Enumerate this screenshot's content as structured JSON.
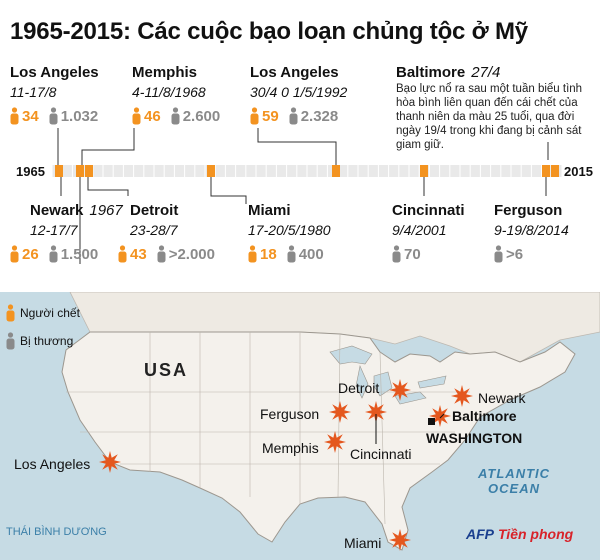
{
  "title": "1965-2015: Các cuộc bạo loạn chủng tộc ở Mỹ",
  "colors": {
    "dead": "#f39320",
    "injured": "#8a8a8a",
    "star": "#e4571e",
    "sea": "#c6dbe4",
    "land": "#f4f1ec"
  },
  "timeline": {
    "start": "1965",
    "end": "2015"
  },
  "events_top": [
    {
      "city": "Los Angeles",
      "year": "",
      "date": "11-17/8",
      "dead": "34",
      "injured": "1.032"
    },
    {
      "city": "Memphis",
      "year": "",
      "date": "4-11/8/1968",
      "dead": "46",
      "injured": "2.600"
    },
    {
      "city": "Los Angeles",
      "year": "",
      "date": "30/4 0 1/5/1992",
      "dead": "59",
      "injured": "2.328"
    },
    {
      "city": "Baltimore",
      "year": "27/4",
      "date": "",
      "dead": "",
      "injured": ""
    }
  ],
  "baltimore_desc": "Bạo lực nổ ra sau một tuần biểu tình hòa bình liên quan đến cái chết của thanh niên da màu 25 tuổi, qua đời ngày 19/4 trong khi đang bị cảnh sát giam giữ.",
  "events_bottom": [
    {
      "city": "Newark",
      "year": "1967",
      "date": "12-17/7",
      "dead": "26",
      "injured": "1.500"
    },
    {
      "city": "Detroit",
      "year": "",
      "date": "23-28/7",
      "dead": "43",
      "injured": ">2.000"
    },
    {
      "city": "Miami",
      "year": "",
      "date": "17-20/5/1980",
      "dead": "18",
      "injured": "400"
    },
    {
      "city": "Cincinnati",
      "year": "",
      "date": "9/4/2001",
      "dead": "",
      "injured": "70"
    },
    {
      "city": "Ferguson",
      "year": "",
      "date": "9-19/8/2014",
      "dead": "",
      "injured": ">6"
    }
  ],
  "legend": {
    "dead": "Người chết",
    "injured": "Bị thương"
  },
  "map_labels": {
    "usa": "USA",
    "los_angeles": "Los Angeles",
    "ferguson": "Ferguson",
    "memphis": "Memphis",
    "detroit": "Detroit",
    "cincinnati": "Cincinnati",
    "newark": "Newark",
    "baltimore": "Baltimore",
    "washington": "WASHINGTON",
    "miami": "Miami",
    "atlantic_1": "ATLANTIC",
    "atlantic_2": "OCEAN",
    "pacific": "THÁI BÌNH DƯƠNG"
  },
  "credit": {
    "afp": "AFP",
    "tp": "Tiền phong"
  }
}
